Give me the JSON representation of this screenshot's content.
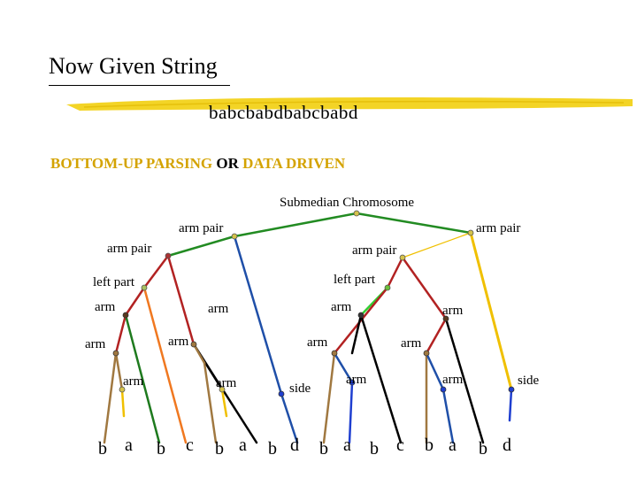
{
  "slide": {
    "title": "Now Given String",
    "input_string": "babcbabdbabcbabd",
    "method": {
      "part1": "BOTTOM-UP PARSING",
      "conjunction": "OR",
      "part2": "DATA DRIVEN"
    }
  },
  "tree": {
    "root": "Submedian Chromosome",
    "labels": {
      "arm_pair_l1": "arm pair",
      "arm_pair_r1": "arm pair",
      "arm_pair_l2": "arm pair",
      "arm_pair_r2": "arm pair",
      "left_part_l": "left part",
      "left_part_r": "left part",
      "arm_a": "arm",
      "arm_b": "arm",
      "arm_c": "arm",
      "arm_d": "arm",
      "arm_e": "arm",
      "arm_f": "arm",
      "arm_g": "arm",
      "arm_h": "arm",
      "arm_i": "arm",
      "arm_j": "arm",
      "arm_k": "arm",
      "arm_l": "arm",
      "side_1": "side",
      "side_2": "side"
    },
    "leaves": [
      "b",
      "a",
      "b",
      "c",
      "b",
      "a",
      "b",
      "d",
      "b",
      "a",
      "b",
      "c",
      "b",
      "a",
      "b",
      "d"
    ]
  },
  "colors": {
    "accent_gold": "#d4a300",
    "highlighter": "#f2d21a"
  }
}
